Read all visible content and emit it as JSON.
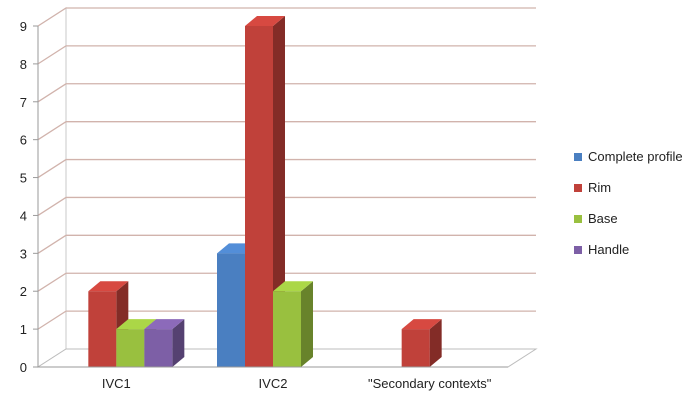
{
  "chart_data": {
    "type": "bar",
    "title": "",
    "xlabel": "",
    "ylabel": "",
    "ylim": [
      0,
      9
    ],
    "yticks": [
      0,
      1,
      2,
      3,
      4,
      5,
      6,
      7,
      8,
      9
    ],
    "grid": true,
    "style": "3d-clustered-column",
    "legend_position": "right",
    "categories": [
      "IVC1",
      "IVC2",
      "\"Secondary contexts\""
    ],
    "series": [
      {
        "name": "Complete profile",
        "color": "#4a7fc1",
        "values": [
          0,
          3,
          0
        ]
      },
      {
        "name": "Rim",
        "color": "#c0413a",
        "values": [
          2,
          9,
          1
        ]
      },
      {
        "name": "Base",
        "color": "#99c03f",
        "values": [
          1,
          2,
          0
        ]
      },
      {
        "name": "Handle",
        "color": "#7d5fa6",
        "values": [
          1,
          0,
          0
        ]
      }
    ]
  }
}
